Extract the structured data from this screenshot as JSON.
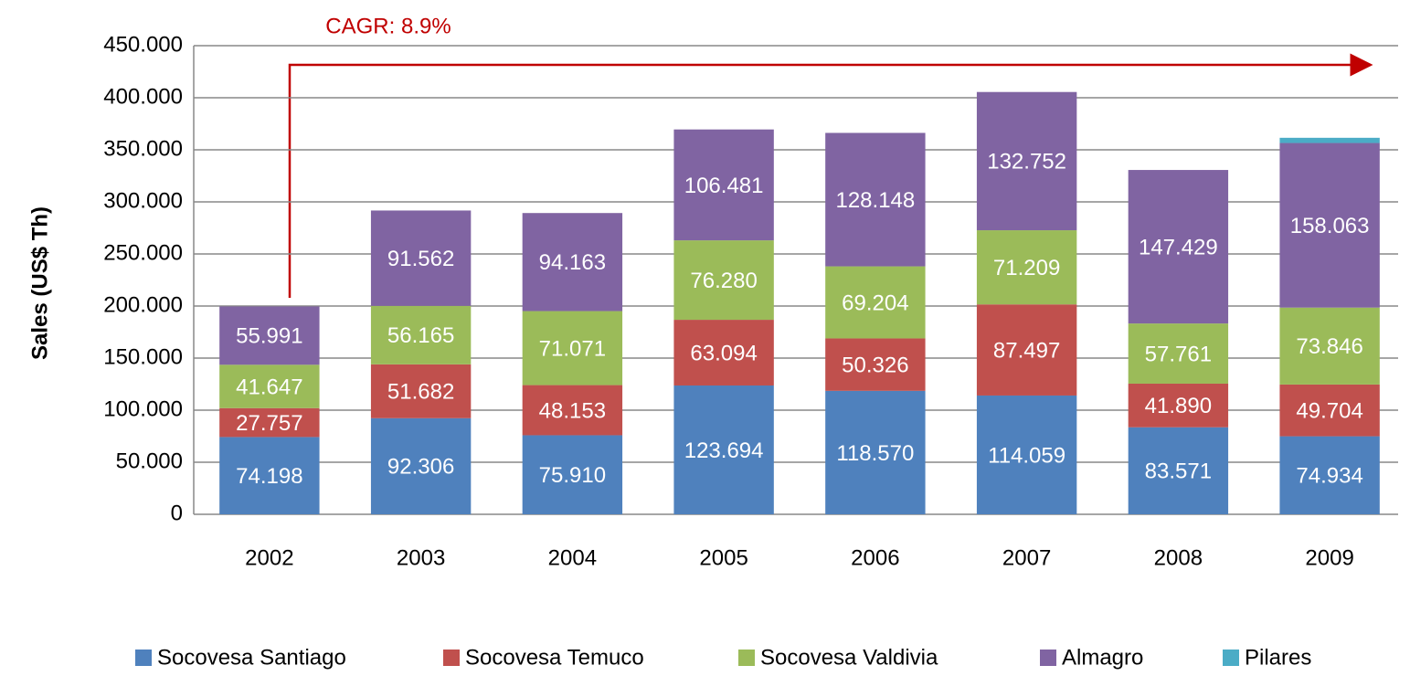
{
  "chart_data": {
    "type": "stacked_bar",
    "annotation": "CAGR: 8.9%",
    "ylabel": "Sales (US$ Th)",
    "categories": [
      "2002",
      "2003",
      "2004",
      "2005",
      "2006",
      "2007",
      "2008",
      "2009"
    ],
    "series": [
      {
        "name": "Socovesa Santiago",
        "color": "#4f81bd",
        "values": [
          74198,
          92306,
          75910,
          123694,
          118570,
          114059,
          83571,
          74934
        ],
        "value_labels": [
          "74.198",
          "92.306",
          "75.910",
          "123.694",
          "118.570",
          "114.059",
          "83.571",
          "74.934"
        ]
      },
      {
        "name": "Socovesa Temuco",
        "color": "#c0504d",
        "values": [
          27757,
          51682,
          48153,
          63094,
          50326,
          87497,
          41890,
          49704
        ],
        "value_labels": [
          "27.757",
          "51.682",
          "48.153",
          "63.094",
          "50.326",
          "87.497",
          "41.890",
          "49.704"
        ]
      },
      {
        "name": "Socovesa Valdivia",
        "color": "#9bbb59",
        "values": [
          41647,
          56165,
          71071,
          76280,
          69204,
          71209,
          57761,
          73846
        ],
        "value_labels": [
          "41.647",
          "56.165",
          "71.071",
          "76.280",
          "69.204",
          "71.209",
          "57.761",
          "73.846"
        ]
      },
      {
        "name": "Almagro",
        "color": "#8064a2",
        "values": [
          55991,
          91562,
          94163,
          106481,
          128148,
          132752,
          147429,
          158063
        ],
        "value_labels": [
          "55.991",
          "91.562",
          "94.163",
          "106.481",
          "128.148",
          "132.752",
          "147.429",
          "158.063"
        ]
      },
      {
        "name": "Pilares",
        "color": "#4bacc6",
        "values": [
          null,
          null,
          null,
          null,
          null,
          null,
          null,
          5000
        ]
      }
    ],
    "ylim": [
      0,
      450000
    ],
    "yticks": [
      0,
      {
        "value": 50000,
        "label": "50.000"
      },
      {
        "value": 100000,
        "label": "100.000"
      },
      {
        "value": 150000,
        "label": "150.000"
      },
      {
        "value": 200000,
        "label": "200.000"
      },
      {
        "value": 250000,
        "label": "250.000"
      },
      {
        "value": 300000,
        "label": "300.000"
      },
      {
        "value": 350000,
        "label": "350.000"
      },
      {
        "value": 400000,
        "label": "400.000"
      },
      {
        "value": 450000,
        "label": "450.000"
      }
    ],
    "grid": true
  }
}
